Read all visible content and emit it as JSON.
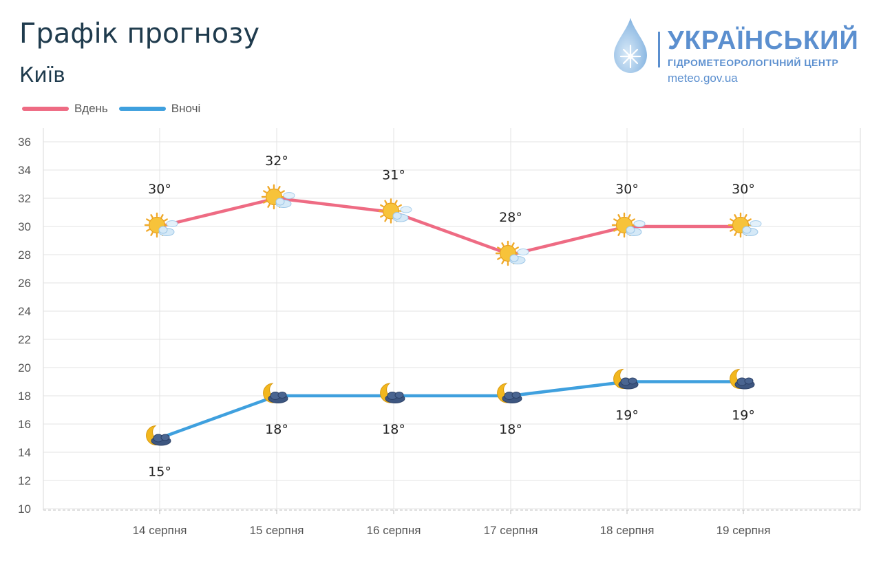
{
  "header": {
    "title": "Графік прогнозу",
    "city": "Київ"
  },
  "logo": {
    "name": "УКРАЇНСЬКИЙ",
    "subtitle": "ГІДРОМЕТЕОРОЛОГІЧНИЙ ЦЕНТР",
    "url": "meteo.gov.ua"
  },
  "colors": {
    "day": "#ee6b83",
    "night": "#3fa0de",
    "grid": "#e3e3e3",
    "brand": "#5b8fcf"
  },
  "icons": {
    "day": "sun-with-cloud-icon",
    "night": "moon-with-cloud-icon"
  },
  "chart_data": {
    "type": "line",
    "title": "Графік прогнозу",
    "subtitle": "Київ",
    "categories": [
      "14 серпня",
      "15 серпня",
      "16 серпня",
      "17 серпня",
      "18 серпня",
      "19 серпня"
    ],
    "series": [
      {
        "name": "Вдень",
        "values": [
          30,
          32,
          31,
          28,
          30,
          30
        ],
        "labels": [
          "30°",
          "32°",
          "31°",
          "28°",
          "30°",
          "30°"
        ]
      },
      {
        "name": "Вночі",
        "values": [
          15,
          18,
          18,
          18,
          19,
          19
        ],
        "labels": [
          "15°",
          "18°",
          "18°",
          "18°",
          "19°",
          "19°"
        ]
      }
    ],
    "ylim": [
      10,
      36
    ],
    "yticks": [
      "10",
      "12",
      "14",
      "16",
      "18",
      "20",
      "22",
      "24",
      "26",
      "28",
      "30",
      "32",
      "34",
      "36"
    ],
    "xlabel": "",
    "ylabel": "",
    "grid": true,
    "legend": "top-left"
  }
}
